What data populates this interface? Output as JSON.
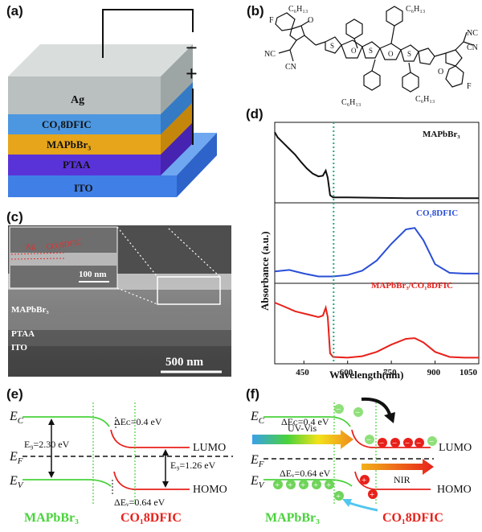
{
  "panels": {
    "a": {
      "label": "(a)",
      "layers": [
        "Ag",
        "CO₁8DFIC",
        "MAPbBr₃",
        "PTAA",
        "ITO"
      ],
      "minus": "−",
      "plus": "+"
    },
    "b": {
      "label": "(b)",
      "atoms": {
        "F": "F",
        "O": "O",
        "S": "S",
        "NC": "NC",
        "CN": "CN",
        "C6H13": "C₆H₁₃"
      }
    },
    "c": {
      "label": "(c)",
      "inset_labels": {
        "ag": "Ag",
        "co8dfic": "CO₁8DFIC"
      },
      "inset_scale": "100 nm",
      "layer_labels": {
        "mapbbr3": "MAPbBr₃",
        "ptaa": "PTAA",
        "ito": "ITO"
      },
      "scale": "500 nm"
    },
    "d": {
      "label": "(d)",
      "ylabel": "Absorbance (a.u.)",
      "xlabel": "Wavelength(nm)",
      "xticks": [
        "450",
        "600",
        "750",
        "900",
        "1050"
      ],
      "legends": [
        "MAPbBr₃",
        "CO₁8DFIC",
        "MAPbBr₃/CO₁8DFIC"
      ],
      "colors": [
        "#111111",
        "#2a4fd6",
        "#e8201a"
      ],
      "marker_color": "#2aa87a"
    },
    "e": {
      "label": "(e)",
      "Ec": "E",
      "Ec_sub": "C",
      "Ef": "E",
      "Ef_sub": "F",
      "Ev": "E",
      "Ev_sub": "V",
      "dEc": "ΔEᴄ=0.4 eV",
      "dEv": "ΔEᵥ=0.64 eV",
      "Eg1": "E₉=2.30 eV",
      "Eg2": "E₉=1.26 eV",
      "lumo": "LUMO",
      "homo": "HOMO",
      "mat1": "MAPbBr₃",
      "mat2": "CO₁8DFIC"
    },
    "f": {
      "label": "(f)",
      "Ec": "E",
      "Ec_sub": "C",
      "Ef": "E",
      "Ef_sub": "F",
      "Ev": "E",
      "Ev_sub": "V",
      "dEc": "ΔEᴄ=0.4 eV",
      "dEv": "ΔEᵥ=0.64 eV",
      "uvvis": "UV-Vis",
      "nir": "NIR",
      "lumo": "LUMO",
      "homo": "HOMO",
      "mat1": "MAPbBr₃",
      "mat2": "CO₁8DFIC"
    }
  },
  "chart_data": {
    "type": "line",
    "xlabel": "Wavelength(nm)",
    "ylabel": "Absorbance (a.u.)",
    "xlim": [
      350,
      1050
    ],
    "xticks": [
      450,
      600,
      750,
      900,
      1050
    ],
    "marker_x": 552,
    "series": [
      {
        "name": "MAPbBr₃",
        "x": [
          350,
          360,
          380,
          400,
          420,
          440,
          460,
          480,
          500,
          515,
          525,
          532,
          540,
          550,
          600,
          700,
          800,
          900,
          1000,
          1050
        ],
        "y": [
          0.93,
          0.86,
          0.78,
          0.7,
          0.62,
          0.52,
          0.43,
          0.36,
          0.32,
          0.33,
          0.4,
          0.3,
          0.06,
          0.03,
          0.03,
          0.025,
          0.02,
          0.02,
          0.02,
          0.02
        ]
      },
      {
        "name": "CO₁8DFIC",
        "x": [
          350,
          400,
          450,
          500,
          550,
          600,
          650,
          700,
          750,
          800,
          830,
          860,
          900,
          950,
          1000,
          1050
        ],
        "y": [
          0.12,
          0.14,
          0.09,
          0.05,
          0.05,
          0.07,
          0.13,
          0.27,
          0.5,
          0.7,
          0.72,
          0.55,
          0.22,
          0.1,
          0.09,
          0.09
        ]
      },
      {
        "name": "MAPbBr₃/CO₁8DFIC",
        "x": [
          350,
          380,
          420,
          460,
          500,
          515,
          525,
          532,
          540,
          550,
          600,
          650,
          700,
          750,
          800,
          830,
          860,
          900,
          950,
          1000,
          1050
        ],
        "y": [
          0.8,
          0.75,
          0.68,
          0.64,
          0.6,
          0.62,
          0.73,
          0.6,
          0.1,
          0.05,
          0.04,
          0.06,
          0.12,
          0.22,
          0.3,
          0.31,
          0.25,
          0.12,
          0.05,
          0.04,
          0.04
        ]
      }
    ]
  }
}
